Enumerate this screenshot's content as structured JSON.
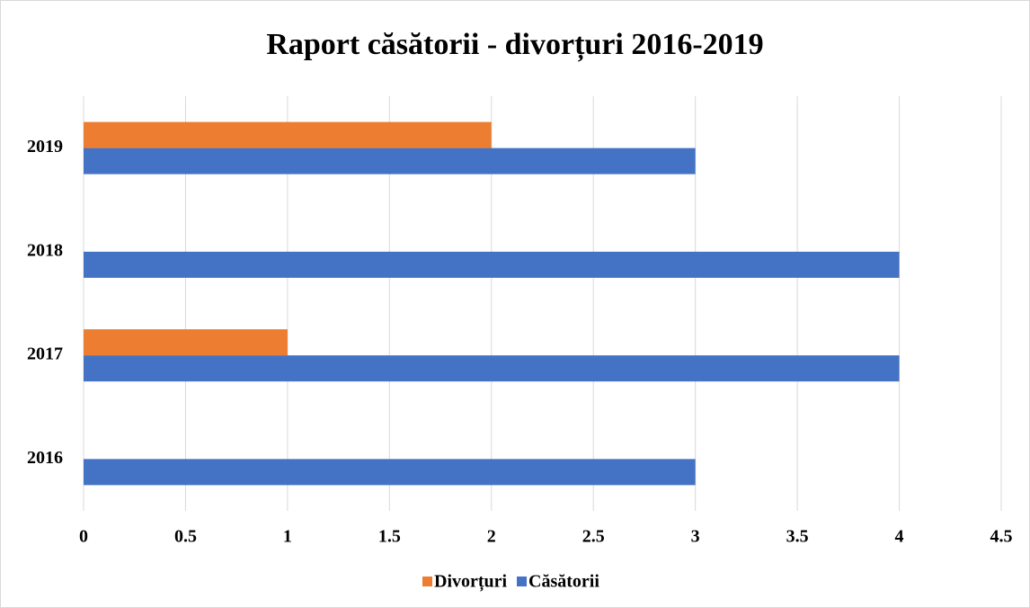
{
  "chart_data": {
    "type": "barh",
    "title": "Raport căsătorii - divorțuri 2016-2019",
    "categories": [
      "2016",
      "2017",
      "2018",
      "2019"
    ],
    "series": [
      {
        "name": "Divorțuri",
        "color": "#ED7D31",
        "values": [
          0,
          1,
          0,
          2
        ]
      },
      {
        "name": "Căsătorii",
        "color": "#4472C4",
        "values": [
          3,
          4,
          4,
          3
        ]
      }
    ],
    "xlim": [
      0,
      4.5
    ],
    "xticks": [
      0,
      0.5,
      1,
      1.5,
      2,
      2.5,
      3,
      3.5,
      4,
      4.5
    ],
    "grid": true,
    "legend": "bottom"
  }
}
